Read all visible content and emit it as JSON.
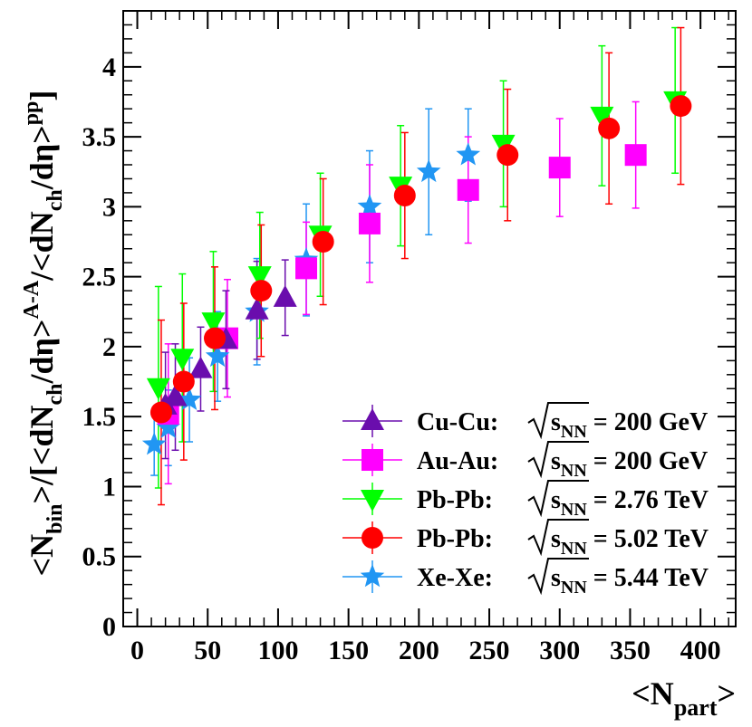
{
  "chart_data": {
    "type": "scatter",
    "xlabel": "<Npart>",
    "ylabel": "<Nbin>/[<dNch/dη>A-A/<dNch/dη>pp]",
    "xlim": [
      -10,
      425
    ],
    "ylim": [
      0,
      4.4
    ],
    "x_ticks": [
      0,
      50,
      100,
      150,
      200,
      250,
      300,
      350,
      400
    ],
    "y_ticks": [
      0,
      0.5,
      1,
      1.5,
      2,
      2.5,
      3,
      3.5,
      4
    ],
    "x_tick_labels": [
      "0",
      "50",
      "100",
      "150",
      "200",
      "250",
      "300",
      "350",
      "400"
    ],
    "y_tick_labels": [
      "0",
      "0.5",
      "1",
      "1.5",
      "2",
      "2.5",
      "3",
      "3.5",
      "4"
    ],
    "grid": false,
    "legend_position": "bottom-right",
    "series": [
      {
        "name": "Cu-Cu: √sNN = 200 GeV",
        "system": "Cu-Cu:",
        "energy": "200 GeV",
        "marker": "triangle-up",
        "color": "#6a0dad",
        "points": [
          {
            "x": 20,
            "y": 1.58,
            "err": 0.38
          },
          {
            "x": 27,
            "y": 1.64,
            "err": 0.38
          },
          {
            "x": 45,
            "y": 1.84,
            "err": 0.3
          },
          {
            "x": 63,
            "y": 2.05,
            "err": 0.35
          },
          {
            "x": 85,
            "y": 2.26,
            "err": 0.35
          },
          {
            "x": 105,
            "y": 2.35,
            "err": 0.27
          }
        ]
      },
      {
        "name": "Au-Au: √sNN = 200 GeV",
        "system": "Au-Au:",
        "energy": "200 GeV",
        "marker": "square",
        "color": "#ff00ff",
        "points": [
          {
            "x": 22,
            "y": 1.52,
            "err": 0.5
          },
          {
            "x": 64,
            "y": 2.06,
            "err": 0.42
          },
          {
            "x": 120,
            "y": 2.56,
            "err": 0.33
          },
          {
            "x": 165,
            "y": 2.88,
            "err": 0.42
          },
          {
            "x": 235,
            "y": 3.12,
            "err": 0.38
          },
          {
            "x": 300,
            "y": 3.28,
            "err": 0.35
          },
          {
            "x": 354,
            "y": 3.37,
            "err": 0.38
          }
        ]
      },
      {
        "name": "Pb-Pb: √sNN = 2.76 TeV",
        "system": "Pb-Pb:",
        "energy": "2.76 TeV",
        "marker": "triangle-down",
        "color": "#00ff00",
        "points": [
          {
            "x": 15,
            "y": 1.71,
            "err": 0.72
          },
          {
            "x": 32,
            "y": 1.92,
            "err": 0.6
          },
          {
            "x": 54,
            "y": 2.18,
            "err": 0.5
          },
          {
            "x": 87,
            "y": 2.51,
            "err": 0.45
          },
          {
            "x": 130,
            "y": 2.8,
            "err": 0.44
          },
          {
            "x": 187,
            "y": 3.15,
            "err": 0.43
          },
          {
            "x": 260,
            "y": 3.45,
            "err": 0.45
          },
          {
            "x": 330,
            "y": 3.65,
            "err": 0.5
          },
          {
            "x": 382,
            "y": 3.76,
            "err": 0.52
          }
        ]
      },
      {
        "name": "Pb-Pb: √sNN = 5.02 TeV",
        "system": "Pb-Pb:",
        "energy": "5.02 TeV",
        "marker": "circle",
        "color": "#ff0000",
        "points": [
          {
            "x": 17,
            "y": 1.53,
            "err": 0.66
          },
          {
            "x": 33,
            "y": 1.75,
            "err": 0.56
          },
          {
            "x": 55,
            "y": 2.06,
            "err": 0.51
          },
          {
            "x": 88,
            "y": 2.4,
            "err": 0.47
          },
          {
            "x": 132,
            "y": 2.75,
            "err": 0.45
          },
          {
            "x": 190,
            "y": 3.08,
            "err": 0.45
          },
          {
            "x": 263,
            "y": 3.37,
            "err": 0.47
          },
          {
            "x": 335,
            "y": 3.56,
            "err": 0.54
          },
          {
            "x": 386,
            "y": 3.72,
            "err": 0.56
          }
        ]
      },
      {
        "name": "Xe-Xe: √sNN = 5.44 TeV",
        "system": "Xe-Xe:",
        "energy": "5.44 TeV",
        "marker": "star",
        "color": "#2196f3",
        "points": [
          {
            "x": 12,
            "y": 1.3,
            "err": 0.22
          },
          {
            "x": 22,
            "y": 1.42,
            "err": 0.27
          },
          {
            "x": 37,
            "y": 1.62,
            "err": 0.3
          },
          {
            "x": 57,
            "y": 1.93,
            "err": 0.32
          },
          {
            "x": 85,
            "y": 2.25,
            "err": 0.38
          },
          {
            "x": 120,
            "y": 2.62,
            "err": 0.4
          },
          {
            "x": 165,
            "y": 3.0,
            "err": 0.4
          },
          {
            "x": 207,
            "y": 3.25,
            "err": 0.45
          },
          {
            "x": 235,
            "y": 3.37,
            "err": 0.33
          }
        ]
      }
    ]
  },
  "legend": {
    "title": "",
    "sqrt_symbol": "√",
    "s_label": "s",
    "nn_subscript": "NN",
    "equals": " = "
  },
  "axis_titles": {
    "x_main": "<N",
    "x_sub": "part",
    "x_close": ">",
    "y_part1": "<N",
    "y_sub1": "bin",
    "y_part2": ">/[<dN",
    "y_sub2": "ch",
    "y_part3": "/dη>",
    "y_sup1": "A-A",
    "y_part4": "/<dN",
    "y_sub3": "ch",
    "y_part5": "/dη>",
    "y_sup2": "pp",
    "y_part6": "]"
  }
}
